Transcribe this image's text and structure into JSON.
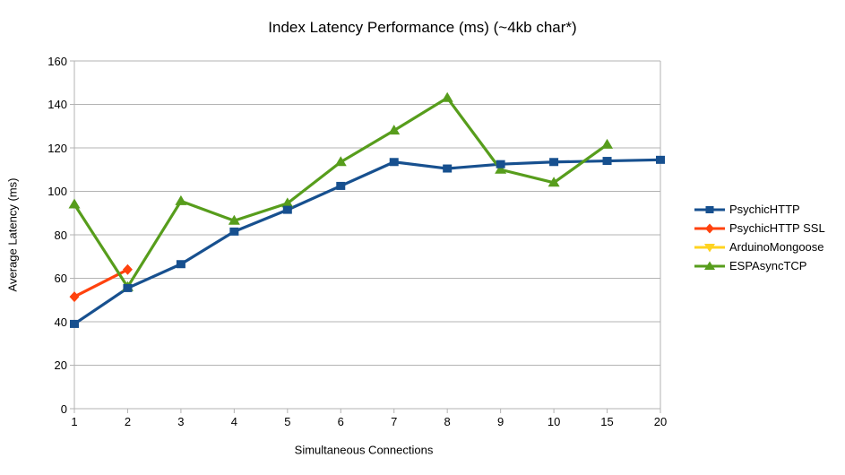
{
  "chart_data": {
    "type": "line",
    "title": "Index Latency Performance (ms) (~4kb char*)",
    "xlabel": "Simultaneous Connections",
    "ylabel": "Average Latency (ms)",
    "ylim": [
      0,
      160
    ],
    "ytick_step": 20,
    "grid": "horizontal",
    "legend_position": "right",
    "categories": [
      "1",
      "2",
      "3",
      "4",
      "5",
      "6",
      "7",
      "8",
      "9",
      "10",
      "15",
      "20"
    ],
    "series": [
      {
        "name": "PsychicHTTP",
        "color": "#17508f",
        "marker": "square",
        "values": [
          39,
          55.5,
          66.5,
          81.5,
          91.5,
          102.5,
          113.5,
          110.5,
          112.5,
          113.5,
          114,
          114.5
        ]
      },
      {
        "name": "PsychicHTTP SSL",
        "color": "#ff420e",
        "marker": "diamond",
        "values": [
          51.5,
          64,
          null,
          null,
          null,
          null,
          null,
          null,
          null,
          null,
          null,
          null
        ]
      },
      {
        "name": "ArduinoMongoose",
        "color": "#ffd320",
        "marker": "triangle-down",
        "values": [
          null,
          null,
          null,
          null,
          null,
          null,
          null,
          null,
          null,
          null,
          null,
          null
        ]
      },
      {
        "name": "ESPAsyncTCP",
        "color": "#579d1c",
        "marker": "triangle-up",
        "values": [
          94,
          56,
          95.5,
          86.5,
          94.5,
          113.5,
          128,
          143,
          110,
          104,
          121.5,
          null
        ]
      }
    ]
  },
  "colors": {
    "background": "#ffffff",
    "gridline": "#b3b3b3",
    "axis": "#b3b3b3",
    "text": "#000000"
  }
}
